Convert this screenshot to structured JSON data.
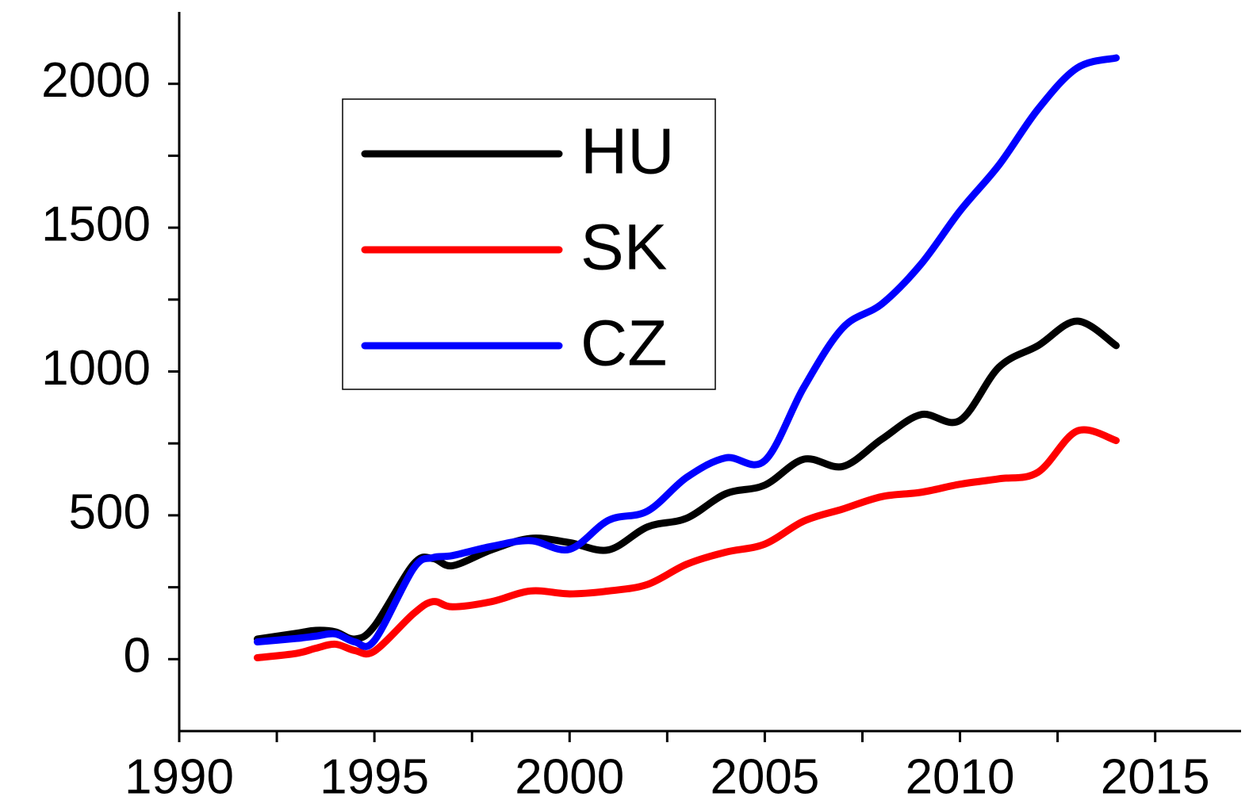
{
  "chart_data": {
    "type": "line",
    "x": [
      1992,
      1993,
      1993.5,
      1994,
      1994.5,
      1995,
      1996,
      1996.5,
      1997,
      1998,
      1999,
      2000,
      2001,
      2002,
      2003,
      2004,
      2005,
      2006,
      2007,
      2008,
      2009,
      2010,
      2011,
      2012,
      2013,
      2014
    ],
    "series": [
      {
        "name": "HU",
        "color": "#000000",
        "values": [
          70,
          90,
          100,
          95,
          70,
          115,
          330,
          350,
          325,
          380,
          420,
          405,
          380,
          460,
          490,
          575,
          605,
          695,
          670,
          765,
          850,
          830,
          1015,
          1090,
          1175,
          1090
        ]
      },
      {
        "name": "SK",
        "color": "#ff0000",
        "values": [
          5,
          20,
          38,
          52,
          30,
          28,
          158,
          200,
          182,
          200,
          237,
          227,
          237,
          260,
          330,
          372,
          400,
          480,
          522,
          565,
          580,
          608,
          627,
          650,
          793,
          760
        ]
      },
      {
        "name": "CZ",
        "color": "#0000ff",
        "values": [
          60,
          72,
          80,
          88,
          60,
          65,
          315,
          353,
          360,
          392,
          412,
          382,
          483,
          515,
          632,
          700,
          690,
          945,
          1152,
          1235,
          1373,
          1558,
          1718,
          1912,
          2055,
          2090
        ]
      }
    ],
    "xlim": [
      1990,
      2017.2
    ],
    "xticks": [
      1990,
      1995,
      2000,
      2005,
      2010,
      2015
    ],
    "ylim": [
      -250,
      2250
    ],
    "yticks": [
      0,
      500,
      1000,
      1500,
      2000
    ],
    "legend": "upper left"
  }
}
